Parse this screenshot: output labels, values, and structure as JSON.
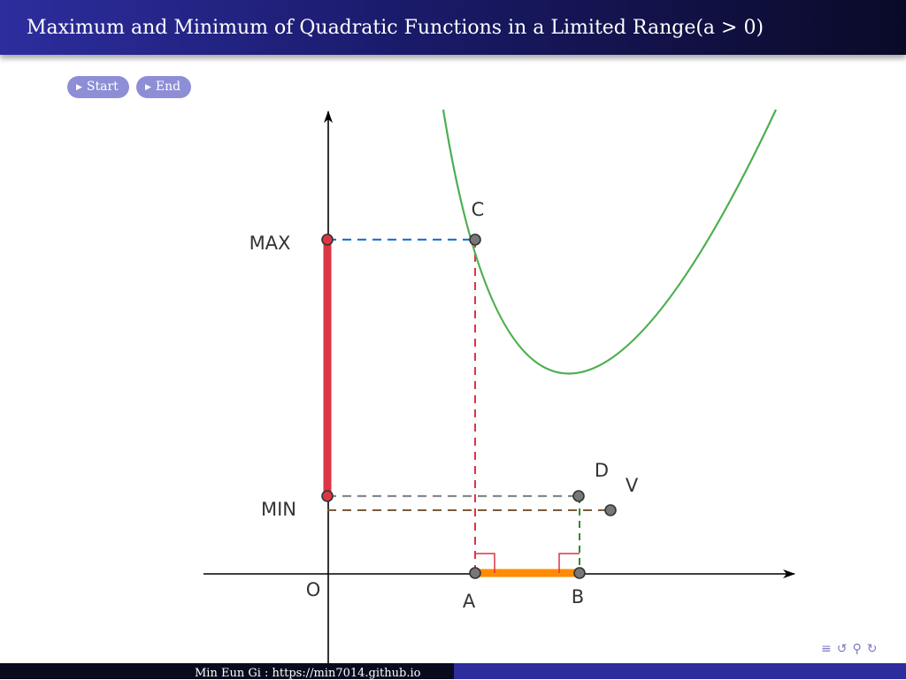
{
  "header": {
    "title": "Maximum and Minimum of Quadratic Functions in a Limited Range(a > 0)"
  },
  "controls": {
    "start_label": "Start",
    "end_label": "End"
  },
  "diagram": {
    "labels": {
      "max": "MAX",
      "min": "MIN",
      "origin": "O",
      "a": "A",
      "b": "B",
      "c": "C",
      "d": "D",
      "v": "V"
    }
  },
  "footer": {
    "author": "Min Eun Gi : https://min7014.github.io"
  },
  "icons": {
    "nav": [
      "list-icon",
      "undo-icon",
      "zoom-icon",
      "redo-icon"
    ]
  },
  "colors": {
    "curve": "#4caf50",
    "max_min_bar": "#dc3545",
    "range_bar": "#ff8c00",
    "blue_dash": "#1f77d4",
    "red_dash": "#dc3545",
    "gray_dash": "#888888",
    "brown_dash": "#7a5c3a",
    "green_dash": "#2e8b2e"
  }
}
